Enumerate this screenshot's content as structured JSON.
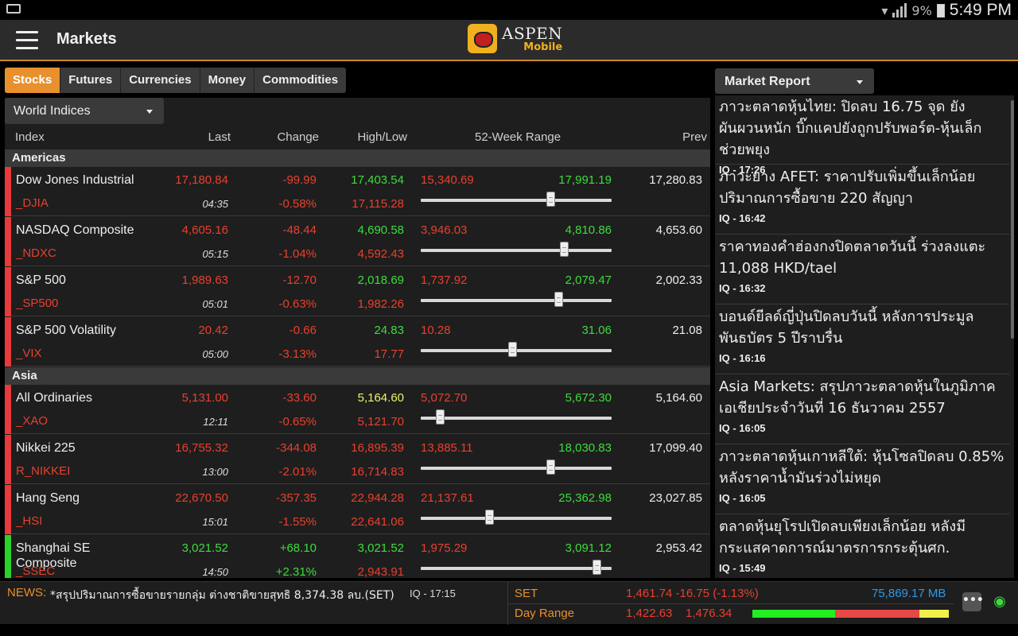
{
  "status_bar": {
    "battery": "9%",
    "time": "5:49 PM"
  },
  "app_bar": {
    "title": "Markets",
    "logo_line1": "ASPEN",
    "logo_line2": "Mobile"
  },
  "tabs": [
    {
      "label": "Stocks",
      "active": true
    },
    {
      "label": "Futures",
      "active": false
    },
    {
      "label": "Currencies",
      "active": false
    },
    {
      "label": "Money",
      "active": false
    },
    {
      "label": "Commodities",
      "active": false
    }
  ],
  "indices_dropdown": {
    "selected": "World Indices"
  },
  "columns": {
    "index": "Index",
    "last": "Last",
    "change": "Change",
    "high_low": "High/Low",
    "week52": "52-Week Range",
    "prev": "Prev"
  },
  "sections": {
    "americas": "Americas",
    "asia": "Asia"
  },
  "rows": [
    {
      "name": "Dow Jones Industrial",
      "symbol": "_DJIA",
      "last": "17,180.84",
      "time": "04:35",
      "change": "-99.99",
      "pct": "-0.58%",
      "high": "17,403.54",
      "low": "17,115.28",
      "range_low": "15,340.69",
      "range_high": "17,991.19",
      "prev": "17,280.83",
      "range_pos": 0.68,
      "trend": "down",
      "high_color": "green"
    },
    {
      "name": "NASDAQ Composite",
      "symbol": "_NDXC",
      "last": "4,605.16",
      "time": "05:15",
      "change": "-48.44",
      "pct": "-1.04%",
      "high": "4,690.58",
      "low": "4,592.43",
      "range_low": "3,946.03",
      "range_high": "4,810.86",
      "prev": "4,653.60",
      "range_pos": 0.75,
      "trend": "down",
      "high_color": "green"
    },
    {
      "name": "S&P 500",
      "symbol": "_SP500",
      "last": "1,989.63",
      "time": "05:01",
      "change": "-12.70",
      "pct": "-0.63%",
      "high": "2,018.69",
      "low": "1,982.26",
      "range_low": "1,737.92",
      "range_high": "2,079.47",
      "prev": "2,002.33",
      "range_pos": 0.72,
      "trend": "down",
      "high_color": "green"
    },
    {
      "name": "S&P 500 Volatility",
      "symbol": "_VIX",
      "last": "20.42",
      "time": "05:00",
      "change": "-0.66",
      "pct": "-3.13%",
      "high": "24.83",
      "low": "17.77",
      "range_low": "10.28",
      "range_high": "31.06",
      "prev": "21.08",
      "range_pos": 0.48,
      "trend": "down",
      "high_color": "green"
    },
    {
      "name": "All Ordinaries",
      "symbol": "_XAO",
      "last": "5,131.00",
      "time": "12:11",
      "change": "-33.60",
      "pct": "-0.65%",
      "high": "5,164.60",
      "low": "5,121.70",
      "range_low": "5,072.70",
      "range_high": "5,672.30",
      "prev": "5,164.60",
      "range_pos": 0.1,
      "trend": "down",
      "high_color": "yellow"
    },
    {
      "name": "Nikkei 225",
      "symbol": "R_NIKKEI",
      "last": "16,755.32",
      "time": "13:00",
      "change": "-344.08",
      "pct": "-2.01%",
      "high": "16,895.39",
      "low": "16,714.83",
      "range_low": "13,885.11",
      "range_high": "18,030.83",
      "prev": "17,099.40",
      "range_pos": 0.68,
      "trend": "down",
      "high_color": "red"
    },
    {
      "name": "Hang Seng",
      "symbol": "_HSI",
      "last": "22,670.50",
      "time": "15:01",
      "change": "-357.35",
      "pct": "-1.55%",
      "high": "22,944.28",
      "low": "22,641.06",
      "range_low": "21,137.61",
      "range_high": "25,362.98",
      "prev": "23,027.85",
      "range_pos": 0.36,
      "trend": "down",
      "high_color": "red"
    },
    {
      "name": "Shanghai SE Composite",
      "symbol": "_SSEC",
      "last": "3,021.52",
      "time": "14:50",
      "change": "+68.10",
      "pct": "+2.31%",
      "high": "3,021.52",
      "low": "2,943.91",
      "range_low": "1,975.29",
      "range_high": "3,091.12",
      "prev": "2,953.42",
      "range_pos": 0.92,
      "trend": "up",
      "high_color": "green"
    }
  ],
  "market_report": {
    "dropdown": "Market Report",
    "items": [
      {
        "title": "ภาวะตลาดหุ้นไทย: ปิดลบ 16.75 จุด ยังผันผวนหนัก บิ๊กแคปยังถูกปรับพอร์ต-หุ้นเล็กช่วยพยุง",
        "meta": "IQ - 17:26"
      },
      {
        "title": "ภาวะยาง AFET: ราคาปรับเพิ่มขึ้นเล็กน้อย ปริมาณการซื้อขาย 220 สัญญา",
        "meta": "IQ - 16:42"
      },
      {
        "title": "ราคาทองคำฮ่องกงปิดตลาดวันนี้ ร่วงลงแตะ 11,088 HKD/tael",
        "meta": "IQ - 16:32"
      },
      {
        "title": "บอนด์ยีลด์ญี่ปุ่นปิดลบวันนี้ หลังการประมูลพันธบัตร 5 ปีราบรื่น",
        "meta": "IQ - 16:16"
      },
      {
        "title": "Asia Markets: สรุปภาวะตลาดหุ้นในภูมิภาคเอเชียประจำวันที่ 16 ธันวาคม 2557",
        "meta": "IQ - 16:05"
      },
      {
        "title": "ภาวะตลาดหุ้นเกาหลีใต้: หุ้นโซลปิดลบ 0.85% หลังราคาน้ำมันร่วงไม่หยุด",
        "meta": "IQ - 16:05"
      },
      {
        "title": "ตลาดหุ้นยุโรปเปิดลบเพียงเล็กน้อย หลังมีกระแสคาดการณ์มาตรการกระตุ้นศก.",
        "meta": "IQ - 15:49"
      }
    ]
  },
  "ticker": {
    "news_label": "NEWS:",
    "news_text": "*สรุปปริมาณการซื้อขายรายกลุ่ม ต่างชาติขายสุทธิ 8,374.38 ลบ.(SET)",
    "news_time": "IQ - 17:15",
    "set_label": "SET",
    "set_value": "1,461.74 -16.75 (-1.13%)",
    "volume": "75,869.17 MB",
    "day_range_label": "Day Range",
    "day_low": "1,422.63",
    "day_high": "1,476.34",
    "range_segments": [
      {
        "color": "#22ee22",
        "share": 0.42
      },
      {
        "color": "#e84848",
        "share": 0.43
      },
      {
        "color": "#f0f04a",
        "share": 0.15
      }
    ]
  },
  "colors": {
    "accent": "#e8902e",
    "up": "#3ddc3d",
    "down": "#e8402e",
    "volume": "#2c9ae8"
  },
  "icons": {
    "menu": "hamburger-icon",
    "more": "more-icon",
    "live": "live-signal-icon"
  }
}
